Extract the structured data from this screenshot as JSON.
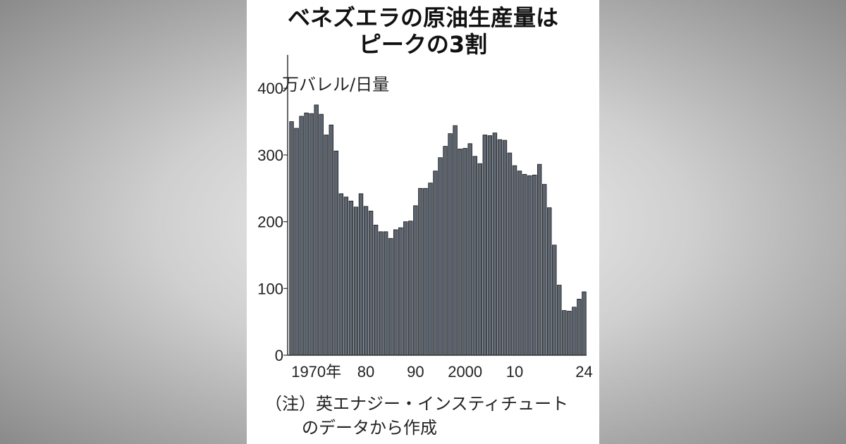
{
  "title": {
    "line1": "ベネズエラの原油生産量は",
    "line2": "ピークの3割"
  },
  "unit_label": "万バレル/日量",
  "note": {
    "line1": "（注）英エナジー・インスティチュート",
    "line2": "のデータから作成"
  },
  "colors": {
    "bar_fill": "#5c6470",
    "bar_stroke": "#1a1a1a",
    "axis": "#333333",
    "background": "#ffffff"
  },
  "chart_data": {
    "type": "bar",
    "title": "ベネズエラの原油生産量はピークの3割",
    "ylabel": "万バレル/日量",
    "xlabel": "",
    "ylim": [
      0,
      450
    ],
    "yticks": [
      "0",
      "100",
      "200",
      "300",
      "400"
    ],
    "xtick_labels": [
      {
        "year": 1970,
        "label": "1970年"
      },
      {
        "year": 1980,
        "label": "80"
      },
      {
        "year": 1990,
        "label": "90"
      },
      {
        "year": 2000,
        "label": "2000"
      },
      {
        "year": 2010,
        "label": "10"
      },
      {
        "year": 2024,
        "label": "24"
      }
    ],
    "categories": [
      1965,
      1966,
      1967,
      1968,
      1969,
      1970,
      1971,
      1972,
      1973,
      1974,
      1975,
      1976,
      1977,
      1978,
      1979,
      1980,
      1981,
      1982,
      1983,
      1984,
      1985,
      1986,
      1987,
      1988,
      1989,
      1990,
      1991,
      1992,
      1993,
      1994,
      1995,
      1996,
      1997,
      1998,
      1999,
      2000,
      2001,
      2002,
      2003,
      2004,
      2005,
      2006,
      2007,
      2008,
      2009,
      2010,
      2011,
      2012,
      2013,
      2014,
      2015,
      2016,
      2017,
      2018,
      2019,
      2020,
      2021,
      2022,
      2023,
      2024
    ],
    "values": [
      350,
      340,
      358,
      363,
      362,
      375,
      361,
      330,
      345,
      306,
      242,
      237,
      231,
      222,
      242,
      223,
      216,
      195,
      185,
      185,
      175,
      188,
      191,
      200,
      201,
      224,
      250,
      250,
      258,
      276,
      296,
      313,
      332,
      344,
      309,
      310,
      317,
      298,
      287,
      330,
      329,
      333,
      323,
      322,
      303,
      284,
      276,
      271,
      269,
      270,
      286,
      256,
      221,
      165,
      105,
      67,
      66,
      72,
      84,
      95
    ],
    "grid": false,
    "legend": "none"
  }
}
